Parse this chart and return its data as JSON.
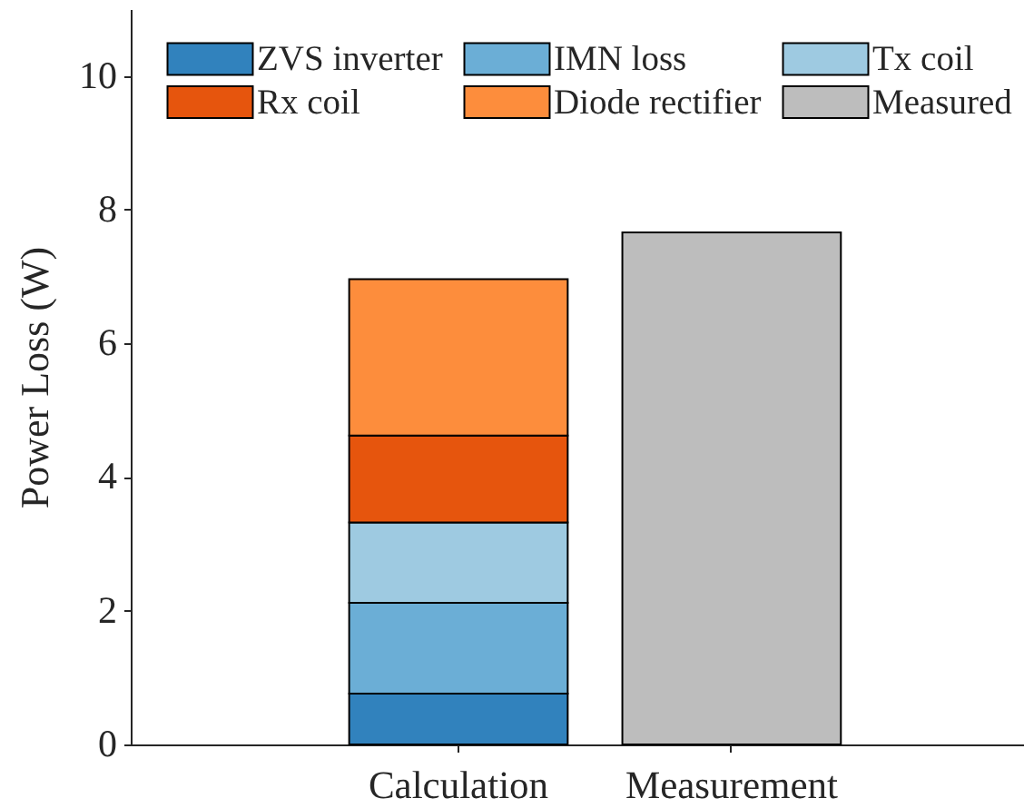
{
  "chart_data": {
    "type": "bar",
    "stacked": true,
    "ylabel": "Power Loss (W)",
    "categories": [
      "Calculation",
      "Measurement"
    ],
    "series": [
      {
        "name": "ZVS inverter",
        "color": "#3182bd",
        "values": [
          0.76,
          null
        ]
      },
      {
        "name": "IMN loss",
        "color": "#6baed6",
        "values": [
          1.36,
          null
        ]
      },
      {
        "name": "Tx coil",
        "color": "#9ecae1",
        "values": [
          1.2,
          null
        ]
      },
      {
        "name": "Rx coil",
        "color": "#e6550d",
        "values": [
          1.3,
          null
        ]
      },
      {
        "name": "Diode rectifier",
        "color": "#fd8d3c",
        "values": [
          2.34,
          null
        ]
      },
      {
        "name": "Measured",
        "color": "#bdbdbd",
        "values": [
          null,
          7.66
        ]
      }
    ],
    "ylim": [
      0,
      11
    ],
    "yticks": [
      0,
      2,
      4,
      6,
      8,
      10
    ],
    "grid": false,
    "legend": "top"
  }
}
